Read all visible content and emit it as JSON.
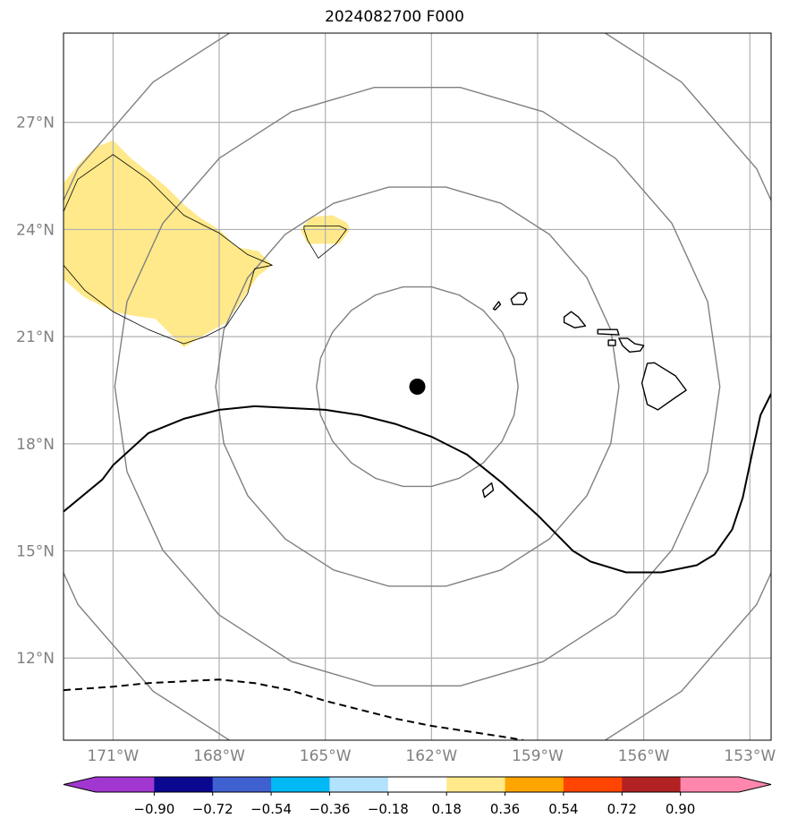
{
  "title": "2024082700 F000",
  "chart_data": {
    "type": "map",
    "title": "2024082700 F000",
    "projection": "lat-lon",
    "xlim": [
      -172.4,
      -152.4
    ],
    "ylim": [
      9.7,
      29.5
    ],
    "x_ticks": [
      -171,
      -168,
      -165,
      -162,
      -159,
      -156,
      -153
    ],
    "y_ticks": [
      12,
      15,
      18,
      21,
      24,
      27
    ],
    "x_tick_labels": [
      "171°W",
      "168°W",
      "165°W",
      "162°W",
      "159°W",
      "156°W",
      "153°W"
    ],
    "y_tick_labels": [
      "12°N",
      "15°N",
      "18°N",
      "21°N",
      "24°N",
      "27°N"
    ],
    "grid": true,
    "center_marker": {
      "lon": -162.4,
      "lat": 19.6
    },
    "range_rings_deg": [
      2.85,
      5.7,
      8.55,
      11.4
    ],
    "shaded_regions": [
      {
        "class": "0.18 to 0.36",
        "color": "#ffe98a",
        "points": [
          [
            -172.4,
            25.3
          ],
          [
            -172.0,
            25.8
          ],
          [
            -171.5,
            26.3
          ],
          [
            -171.0,
            26.5
          ],
          [
            -170.5,
            26.0
          ],
          [
            -170.0,
            25.6
          ],
          [
            -169.5,
            25.2
          ],
          [
            -169.0,
            24.7
          ],
          [
            -168.5,
            24.3
          ],
          [
            -168.0,
            24.0
          ],
          [
            -167.5,
            23.5
          ],
          [
            -166.9,
            23.4
          ],
          [
            -166.5,
            23.0
          ],
          [
            -166.9,
            22.7
          ],
          [
            -167.3,
            22.1
          ],
          [
            -167.8,
            21.4
          ],
          [
            -168.5,
            21.0
          ],
          [
            -169.0,
            20.7
          ],
          [
            -169.3,
            21.0
          ],
          [
            -169.8,
            21.5
          ],
          [
            -170.5,
            21.6
          ],
          [
            -171.0,
            21.7
          ],
          [
            -171.8,
            22.1
          ],
          [
            -172.4,
            22.6
          ]
        ]
      },
      {
        "class": "0.18 to 0.36",
        "color": "#ffe98a",
        "points": [
          [
            -165.7,
            24.0
          ],
          [
            -165.4,
            24.35
          ],
          [
            -164.8,
            24.4
          ],
          [
            -164.4,
            24.2
          ],
          [
            -164.3,
            24.0
          ],
          [
            -164.6,
            23.6
          ],
          [
            -165.5,
            23.6
          ]
        ]
      }
    ],
    "coast_outlines": [
      {
        "name": "kauai",
        "points": [
          [
            -159.75,
            22.05
          ],
          [
            -159.55,
            22.23
          ],
          [
            -159.35,
            22.22
          ],
          [
            -159.3,
            22.05
          ],
          [
            -159.4,
            21.9
          ],
          [
            -159.7,
            21.9
          ]
        ]
      },
      {
        "name": "niihau",
        "points": [
          [
            -160.25,
            21.78
          ],
          [
            -160.1,
            21.98
          ],
          [
            -160.05,
            21.9
          ],
          [
            -160.2,
            21.75
          ]
        ]
      },
      {
        "name": "oahu",
        "points": [
          [
            -158.25,
            21.55
          ],
          [
            -158.05,
            21.7
          ],
          [
            -157.85,
            21.55
          ],
          [
            -157.65,
            21.3
          ],
          [
            -157.95,
            21.25
          ],
          [
            -158.25,
            21.4
          ]
        ]
      },
      {
        "name": "molokai",
        "points": [
          [
            -157.3,
            21.2
          ],
          [
            -156.75,
            21.2
          ],
          [
            -156.7,
            21.05
          ],
          [
            -157.3,
            21.08
          ]
        ]
      },
      {
        "name": "lanai",
        "points": [
          [
            -157.0,
            20.9
          ],
          [
            -156.8,
            20.9
          ],
          [
            -156.8,
            20.75
          ],
          [
            -157.0,
            20.75
          ]
        ]
      },
      {
        "name": "maui",
        "points": [
          [
            -156.7,
            20.95
          ],
          [
            -156.45,
            20.95
          ],
          [
            -156.25,
            20.8
          ],
          [
            -156.0,
            20.75
          ],
          [
            -156.1,
            20.6
          ],
          [
            -156.4,
            20.57
          ],
          [
            -156.6,
            20.75
          ]
        ]
      },
      {
        "name": "hawaii",
        "points": [
          [
            -155.9,
            20.25
          ],
          [
            -155.7,
            20.27
          ],
          [
            -155.1,
            19.9
          ],
          [
            -154.8,
            19.5
          ],
          [
            -155.1,
            19.3
          ],
          [
            -155.6,
            18.95
          ],
          [
            -155.9,
            19.1
          ],
          [
            -156.05,
            19.7
          ]
        ]
      },
      {
        "name": "islet",
        "points": [
          [
            -160.5,
            16.5
          ],
          [
            -160.25,
            16.7
          ],
          [
            -160.3,
            16.9
          ],
          [
            -160.55,
            16.7
          ]
        ]
      },
      {
        "name": "contour-west",
        "points": [
          [
            -172.4,
            24.5
          ],
          [
            -172.0,
            25.4
          ],
          [
            -171.0,
            26.1
          ],
          [
            -170.0,
            25.4
          ],
          [
            -169.0,
            24.4
          ],
          [
            -168.0,
            23.9
          ],
          [
            -167.2,
            23.3
          ],
          [
            -166.5,
            23.0
          ],
          [
            -167.0,
            22.9
          ],
          [
            -167.2,
            22.2
          ],
          [
            -167.8,
            21.3
          ],
          [
            -168.4,
            21.0
          ],
          [
            -169.0,
            20.8
          ],
          [
            -170.0,
            21.2
          ],
          [
            -171.0,
            21.7
          ],
          [
            -171.8,
            22.3
          ],
          [
            -172.4,
            23.0
          ]
        ]
      },
      {
        "name": "contour-small",
        "points": [
          [
            -165.6,
            24.0
          ],
          [
            -165.5,
            23.7
          ],
          [
            -165.2,
            23.2
          ],
          [
            -164.7,
            23.6
          ],
          [
            -164.4,
            24.0
          ],
          [
            -164.6,
            24.1
          ],
          [
            -165.6,
            24.1
          ]
        ]
      }
    ],
    "lines": [
      {
        "style": "solid",
        "color": "#000000",
        "points": [
          [
            -172.4,
            16.1
          ],
          [
            -171.3,
            17.0
          ],
          [
            -171.0,
            17.4
          ],
          [
            -170.0,
            18.3
          ],
          [
            -169.0,
            18.7
          ],
          [
            -168.0,
            18.95
          ],
          [
            -167.0,
            19.05
          ],
          [
            -166.0,
            19.0
          ],
          [
            -165.0,
            18.95
          ],
          [
            -164.0,
            18.8
          ],
          [
            -163.0,
            18.55
          ],
          [
            -162.0,
            18.2
          ],
          [
            -161.0,
            17.7
          ],
          [
            -160.0,
            16.9
          ],
          [
            -159.0,
            16.0
          ],
          [
            -158.0,
            15.0
          ],
          [
            -157.5,
            14.7
          ],
          [
            -156.5,
            14.4
          ],
          [
            -155.5,
            14.4
          ],
          [
            -154.5,
            14.6
          ],
          [
            -154.0,
            14.9
          ],
          [
            -153.5,
            15.6
          ],
          [
            -153.2,
            16.5
          ],
          [
            -152.9,
            17.9
          ],
          [
            -152.7,
            18.8
          ],
          [
            -152.4,
            19.4
          ]
        ]
      },
      {
        "style": "dashed",
        "color": "#000000",
        "points": [
          [
            -172.4,
            11.1
          ],
          [
            -171.0,
            11.2
          ],
          [
            -170.0,
            11.3
          ],
          [
            -169.0,
            11.35
          ],
          [
            -168.0,
            11.4
          ],
          [
            -167.0,
            11.3
          ],
          [
            -166.0,
            11.1
          ],
          [
            -165.0,
            10.8
          ],
          [
            -164.0,
            10.55
          ],
          [
            -163.0,
            10.3
          ],
          [
            -162.0,
            10.1
          ],
          [
            -161.0,
            9.95
          ],
          [
            -160.0,
            9.8
          ],
          [
            -159.4,
            9.7
          ]
        ]
      }
    ],
    "colorbar": {
      "orientation": "horizontal",
      "extend": "both",
      "tick_labels": [
        "−0.90",
        "−0.72",
        "−0.54",
        "−0.36",
        "−0.18",
        "0.18",
        "0.36",
        "0.54",
        "0.72",
        "0.90"
      ],
      "colors": [
        "#a137d0",
        "#0a0890",
        "#3f60d0",
        "#00b9f5",
        "#b2e2fe",
        "#ffffff",
        "#ffe98a",
        "#ffa500",
        "#ff4500",
        "#b22222",
        "#ff87ae",
        "#ff87ae"
      ]
    }
  }
}
